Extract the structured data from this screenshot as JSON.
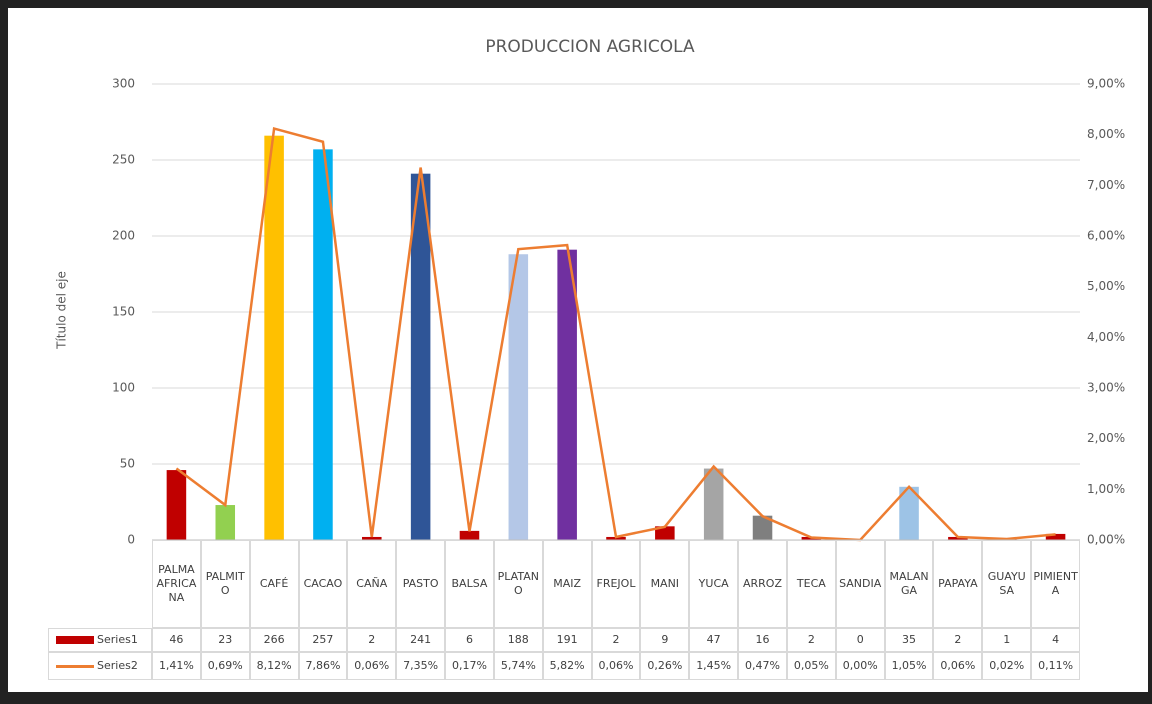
{
  "chart_data": {
    "type": "bar-line",
    "title": "PRODUCCION AGRICOLA",
    "y_axis_title": "Título del eje",
    "categories": [
      "PALMA AFRICANA",
      "PALMITO",
      "CAFÉ",
      "CACAO",
      "CAÑA",
      "PASTO",
      "BALSA",
      "PLATANO",
      "MAIZ",
      "FREJOL",
      "MANI",
      "YUCA",
      "ARROZ",
      "TECA",
      "SANDIA",
      "MALANGA",
      "PAPAYA",
      "GUAYUSA",
      "PIMIENTA"
    ],
    "series": [
      {
        "name": "Series1",
        "type": "bar",
        "color": "#c00000",
        "colors": [
          "#c00000",
          "#92d050",
          "#ffc000",
          "#00b0f0",
          "#c00000",
          "#2f5597",
          "#c00000",
          "#b4c7e7",
          "#7030a0",
          "#c00000",
          "#c00000",
          "#a5a5a5",
          "#7f7f7f",
          "#c00000",
          "#c00000",
          "#9dc3e6",
          "#c00000",
          "#c00000",
          "#c00000"
        ],
        "values": [
          46,
          23,
          266,
          257,
          2,
          241,
          6,
          188,
          191,
          2,
          9,
          47,
          16,
          2,
          0,
          35,
          2,
          1,
          4
        ]
      },
      {
        "name": "Series2",
        "type": "line",
        "axis": "y2",
        "color": "#ed7d31",
        "values": [
          1.41,
          0.69,
          8.12,
          7.86,
          0.06,
          7.35,
          0.17,
          5.74,
          5.82,
          0.06,
          0.26,
          1.45,
          0.47,
          0.05,
          0.0,
          1.05,
          0.06,
          0.02,
          0.11
        ],
        "value_labels": [
          "1,41%",
          "0,69%",
          "8,12%",
          "7,86%",
          "0,06%",
          "7,35%",
          "0,17%",
          "5,74%",
          "5,82%",
          "0,06%",
          "0,26%",
          "1,45%",
          "0,47%",
          "0,05%",
          "0,00%",
          "1,05%",
          "0,06%",
          "0,02%",
          "0,11%"
        ]
      }
    ],
    "ylim": [
      0,
      300
    ],
    "yticks": [
      0,
      50,
      100,
      150,
      200,
      250,
      300
    ],
    "y2lim": [
      0,
      9
    ],
    "y2ticks": [
      {
        "value": 0,
        "label": "0,00%"
      },
      {
        "value": 1,
        "label": "1,00%"
      },
      {
        "value": 2,
        "label": "2,00%"
      },
      {
        "value": 3,
        "label": "3,00%"
      },
      {
        "value": 4,
        "label": "4,00%"
      },
      {
        "value": 5,
        "label": "5,00%"
      },
      {
        "value": 6,
        "label": "6,00%"
      },
      {
        "value": 7,
        "label": "7,00%"
      },
      {
        "value": 8,
        "label": "8,00%"
      },
      {
        "value": 9,
        "label": "9,00%"
      }
    ],
    "grid": true
  }
}
